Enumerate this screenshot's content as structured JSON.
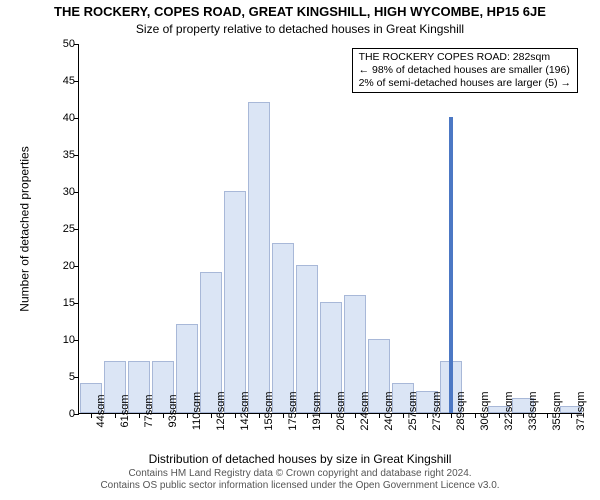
{
  "title_main": "THE ROCKERY, COPES ROAD, GREAT KINGSHILL, HIGH WYCOMBE, HP15 6JE",
  "title_sub": "Size of property relative to detached houses in Great Kingshill",
  "yaxis_title": "Number of detached properties",
  "xaxis_title": "Distribution of detached houses by size in Great Kingshill",
  "footer_line1": "Contains HM Land Registry data © Crown copyright and database right 2024.",
  "footer_line2": "Contains OS public sector information licensed under the Open Government Licence v3.0.",
  "annotation": {
    "line1": "THE ROCKERY COPES ROAD: 282sqm",
    "line2": "← 98% of detached houses are smaller (196)",
    "line3": "2% of semi-detached houses are larger (5) →"
  },
  "chart": {
    "type": "histogram",
    "background_color": "#ffffff",
    "bar_fill": "#dbe5f5",
    "bar_border": "#a8b8d8",
    "highlight_fill": "#4c78c4",
    "ylim": [
      0,
      50
    ],
    "ytick_step": 5,
    "yticks": [
      0,
      5,
      10,
      15,
      20,
      25,
      30,
      35,
      40,
      45,
      50
    ],
    "xtick_labels": [
      "44sqm",
      "61sqm",
      "77sqm",
      "93sqm",
      "110sqm",
      "126sqm",
      "142sqm",
      "159sqm",
      "175sqm",
      "191sqm",
      "208sqm",
      "224sqm",
      "240sqm",
      "257sqm",
      "273sqm",
      "289sqm",
      "306sqm",
      "322sqm",
      "338sqm",
      "355sqm",
      "371sqm"
    ],
    "bars": [
      4,
      7,
      7,
      7,
      12,
      19,
      30,
      42,
      23,
      20,
      15,
      16,
      10,
      4,
      3,
      7,
      0,
      1,
      2,
      0,
      1
    ],
    "highlight_index": 15,
    "highlight_value": 40,
    "title_fontsize": 13,
    "subtitle_fontsize": 12,
    "axis_label_fontsize": 12,
    "tick_fontsize": 11,
    "annotation_fontsize": 10.5,
    "footer_fontsize": 10
  }
}
